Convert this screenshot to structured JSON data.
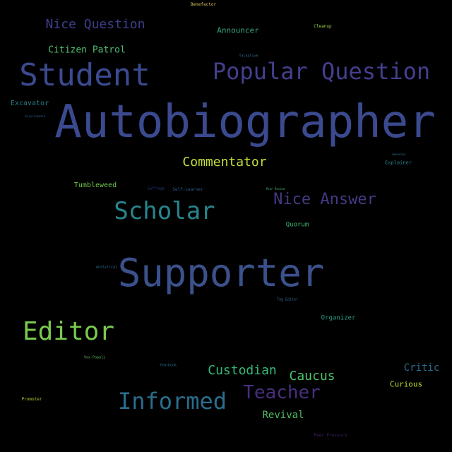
{
  "words": [
    {
      "text": "Benefactor",
      "color": "#d8c85a"
    },
    {
      "text": "Nice Question",
      "color": "#3e3f8e"
    },
    {
      "text": "Announcer",
      "color": "#37a584"
    },
    {
      "text": "Cleanup",
      "color": "#9bd043"
    },
    {
      "text": "Citizen Patrol",
      "color": "#4fbd70"
    },
    {
      "text": "Talkative",
      "color": "#2a6e8c"
    },
    {
      "text": "Student",
      "color": "#3b4a8f"
    },
    {
      "text": "Popular Question",
      "color": "#433f8e"
    },
    {
      "text": "Excavator",
      "color": "#2a7c86"
    },
    {
      "text": "Encyclopedia",
      "color": "#2c5d8d"
    },
    {
      "text": "Autobiographer",
      "color": "#3b4a8f"
    },
    {
      "text": "Commentator",
      "color": "#c5de38"
    },
    {
      "text": "Generous",
      "color": "#2a7c8c"
    },
    {
      "text": "Explainer",
      "color": "#2a7c86"
    },
    {
      "text": "Tumbleweed",
      "color": "#71c74e"
    },
    {
      "text": "Suffrage",
      "color": "#2b3c88"
    },
    {
      "text": "Self-Learner",
      "color": "#2c5d8d"
    },
    {
      "text": "Peer Review",
      "color": "#3fbd74"
    },
    {
      "text": "Scholar",
      "color": "#28858d"
    },
    {
      "text": "Nice Answer",
      "color": "#443983"
    },
    {
      "text": "Quorum",
      "color": "#3ab873"
    },
    {
      "text": "Analytical",
      "color": "#2c6d8e"
    },
    {
      "text": "Supporter",
      "color": "#3b518b"
    },
    {
      "text": "Tag Editor",
      "color": "#2a6e8c"
    },
    {
      "text": "Editor",
      "color": "#7ac94f"
    },
    {
      "text": "Organizer",
      "color": "#2a9a80"
    },
    {
      "text": "Vox Populi",
      "color": "#5fbf5a"
    },
    {
      "text": "Yearbook",
      "color": "#2c6d8e"
    },
    {
      "text": "Custodian",
      "color": "#34b97a"
    },
    {
      "text": "Caucus",
      "color": "#4dc36a"
    },
    {
      "text": "Critic",
      "color": "#2a6e8e"
    },
    {
      "text": "Teacher",
      "color": "#472f7d"
    },
    {
      "text": "Curious",
      "color": "#b8de29"
    },
    {
      "text": "Informed",
      "color": "#2a6e8e"
    },
    {
      "text": "Promoter",
      "color": "#b8c83a"
    },
    {
      "text": "Revival",
      "color": "#4fbf63"
    },
    {
      "text": "Peer Pressure",
      "color": "#3e1f63"
    }
  ]
}
